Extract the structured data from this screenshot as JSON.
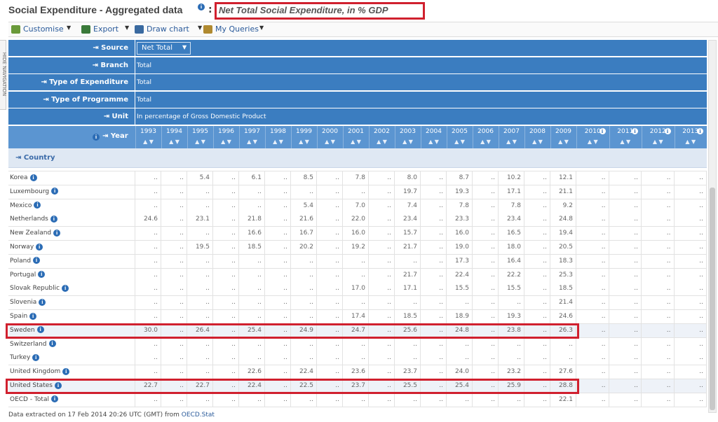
{
  "header": {
    "title": "Social Expenditure - Aggregated data",
    "separator": ":",
    "subtitle": "Net Total Social Expenditure, in % GDP"
  },
  "toolbar": {
    "items": [
      "Customise",
      "Export",
      "Draw chart",
      "My Queries"
    ]
  },
  "side_tab": "HIDE NAVIGATION",
  "filters": [
    {
      "label": "Source",
      "value": "Net Total"
    },
    {
      "label": "Branch",
      "value": "Total"
    },
    {
      "label": "Type of Expenditure",
      "value": "Total"
    },
    {
      "label": "Type of Programme",
      "value": "Total"
    },
    {
      "label": "Unit",
      "value": "In percentage of Gross Domestic Product"
    }
  ],
  "table": {
    "year_label": "Year",
    "country_label": "Country",
    "years": [
      "1993",
      "1994",
      "1995",
      "1996",
      "1997",
      "1998",
      "1999",
      "2000",
      "2001",
      "2002",
      "2003",
      "2004",
      "2005",
      "2006",
      "2007",
      "2008",
      "2009",
      "2010",
      "2011",
      "2012",
      "2013"
    ],
    "rows": [
      {
        "country": "Korea",
        "values": [
          "..",
          "..",
          "5.4",
          "..",
          "6.1",
          "..",
          "8.5",
          "..",
          "7.8",
          "..",
          "8.0",
          "..",
          "8.7",
          "..",
          "10.2",
          "..",
          "12.1",
          "..",
          "..",
          "..",
          ".."
        ]
      },
      {
        "country": "Luxembourg",
        "values": [
          "..",
          "..",
          "..",
          "..",
          "..",
          "..",
          "..",
          "..",
          "..",
          "..",
          "19.7",
          "..",
          "19.3",
          "..",
          "17.1",
          "..",
          "21.1",
          "..",
          "..",
          "..",
          ".."
        ]
      },
      {
        "country": "Mexico",
        "values": [
          "..",
          "..",
          "..",
          "..",
          "..",
          "..",
          "5.4",
          "..",
          "7.0",
          "..",
          "7.4",
          "..",
          "7.8",
          "..",
          "7.8",
          "..",
          "9.2",
          "..",
          "..",
          "..",
          ".."
        ]
      },
      {
        "country": "Netherlands",
        "values": [
          "24.6",
          "..",
          "23.1",
          "..",
          "21.8",
          "..",
          "21.6",
          "..",
          "22.0",
          "..",
          "23.4",
          "..",
          "23.3",
          "..",
          "23.4",
          "..",
          "24.8",
          "..",
          "..",
          "..",
          ".."
        ]
      },
      {
        "country": "New Zealand",
        "values": [
          "..",
          "..",
          "..",
          "..",
          "16.6",
          "..",
          "16.7",
          "..",
          "16.0",
          "..",
          "15.7",
          "..",
          "16.0",
          "..",
          "16.5",
          "..",
          "19.4",
          "..",
          "..",
          "..",
          ".."
        ]
      },
      {
        "country": "Norway",
        "values": [
          "..",
          "..",
          "19.5",
          "..",
          "18.5",
          "..",
          "20.2",
          "..",
          "19.2",
          "..",
          "21.7",
          "..",
          "19.0",
          "..",
          "18.0",
          "..",
          "20.5",
          "..",
          "..",
          "..",
          ".."
        ]
      },
      {
        "country": "Poland",
        "values": [
          "..",
          "..",
          "..",
          "..",
          "..",
          "..",
          "..",
          "..",
          "..",
          "..",
          "..",
          "..",
          "17.3",
          "..",
          "16.4",
          "..",
          "18.3",
          "..",
          "..",
          "..",
          ".."
        ]
      },
      {
        "country": "Portugal",
        "values": [
          "..",
          "..",
          "..",
          "..",
          "..",
          "..",
          "..",
          "..",
          "..",
          "..",
          "21.7",
          "..",
          "22.4",
          "..",
          "22.2",
          "..",
          "25.3",
          "..",
          "..",
          "..",
          ".."
        ]
      },
      {
        "country": "Slovak Republic",
        "values": [
          "..",
          "..",
          "..",
          "..",
          "..",
          "..",
          "..",
          "..",
          "17.0",
          "..",
          "17.1",
          "..",
          "15.5",
          "..",
          "15.5",
          "..",
          "18.5",
          "..",
          "..",
          "..",
          ".."
        ]
      },
      {
        "country": "Slovenia",
        "values": [
          "..",
          "..",
          "..",
          "..",
          "..",
          "..",
          "..",
          "..",
          "..",
          "..",
          "..",
          "..",
          "..",
          "..",
          "..",
          "..",
          "21.4",
          "..",
          "..",
          "..",
          ".."
        ]
      },
      {
        "country": "Spain",
        "values": [
          "..",
          "..",
          "..",
          "..",
          "..",
          "..",
          "..",
          "..",
          "17.4",
          "..",
          "18.5",
          "..",
          "18.9",
          "..",
          "19.3",
          "..",
          "24.6",
          "..",
          "..",
          "..",
          ".."
        ]
      },
      {
        "country": "Sweden",
        "highlight": true,
        "values": [
          "30.0",
          "..",
          "26.4",
          "..",
          "25.4",
          "..",
          "24.9",
          "..",
          "24.7",
          "..",
          "25.6",
          "..",
          "24.8",
          "..",
          "23.8",
          "..",
          "26.3",
          "..",
          "..",
          "..",
          ".."
        ]
      },
      {
        "country": "Switzerland",
        "values": [
          "..",
          "..",
          "..",
          "..",
          "..",
          "..",
          "..",
          "..",
          "..",
          "..",
          "..",
          "..",
          "..",
          "..",
          "..",
          "..",
          "..",
          "..",
          "..",
          "..",
          ".."
        ]
      },
      {
        "country": "Turkey",
        "values": [
          "..",
          "..",
          "..",
          "..",
          "..",
          "..",
          "..",
          "..",
          "..",
          "..",
          "..",
          "..",
          "..",
          "..",
          "..",
          "..",
          "..",
          "..",
          "..",
          "..",
          ".."
        ]
      },
      {
        "country": "United Kingdom",
        "values": [
          "..",
          "..",
          "..",
          "..",
          "22.6",
          "..",
          "22.4",
          "..",
          "23.6",
          "..",
          "23.7",
          "..",
          "24.0",
          "..",
          "23.2",
          "..",
          "27.6",
          "..",
          "..",
          "..",
          ".."
        ]
      },
      {
        "country": "United States",
        "highlight": true,
        "values": [
          "22.7",
          "..",
          "22.7",
          "..",
          "22.4",
          "..",
          "22.5",
          "..",
          "23.7",
          "..",
          "25.5",
          "..",
          "25.4",
          "..",
          "25.9",
          "..",
          "28.8",
          "..",
          "..",
          "..",
          ".."
        ]
      },
      {
        "country": "OECD - Total",
        "values": [
          "..",
          "..",
          "..",
          "..",
          "..",
          "..",
          "..",
          "..",
          "..",
          "..",
          "..",
          "..",
          "..",
          "..",
          "..",
          "..",
          "22.1",
          "..",
          "..",
          "..",
          ".."
        ]
      }
    ]
  },
  "footer": {
    "text": "Data extracted on 17 Feb 2014 20:26 UTC (GMT) from",
    "link": "OECD.Stat"
  }
}
